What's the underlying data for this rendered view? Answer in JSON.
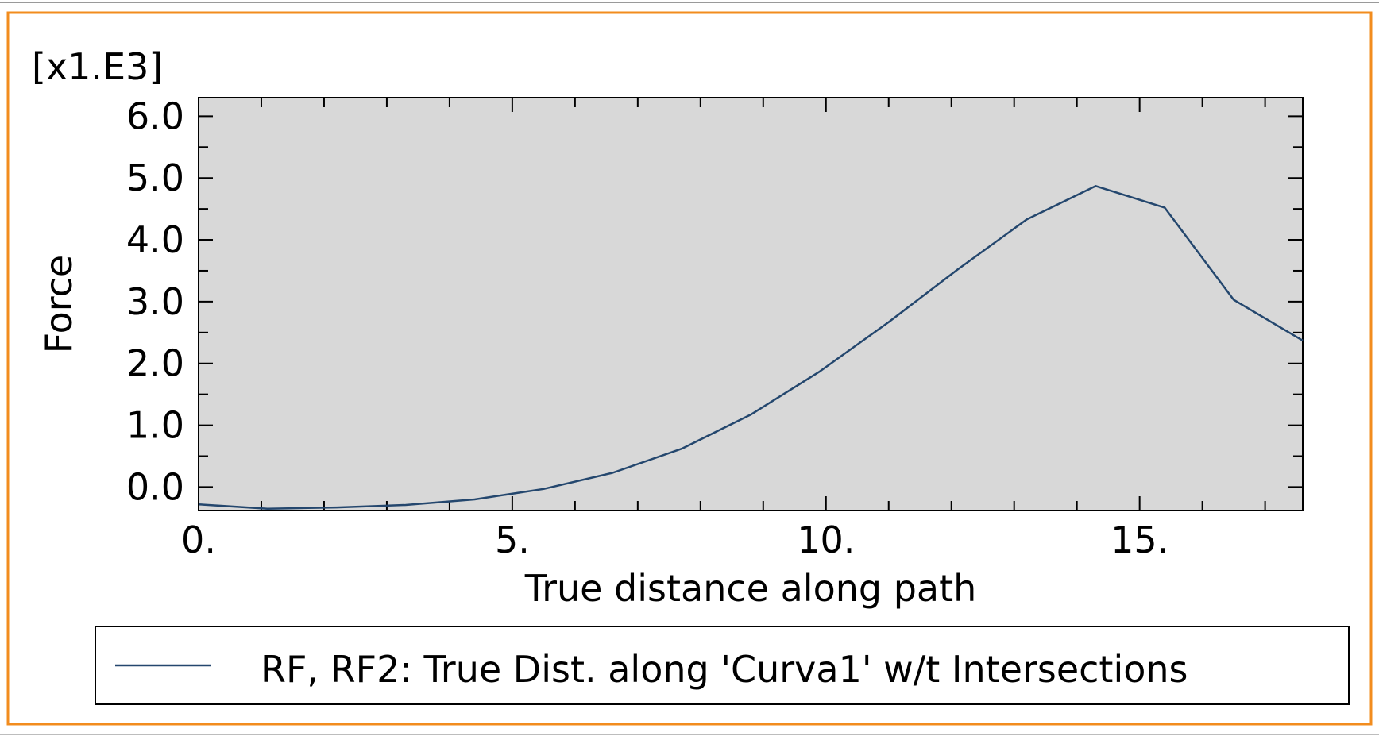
{
  "colors": {
    "frame_border": "#f28c1e",
    "plot_background": "#d8d8d8",
    "series_line": "#24476e",
    "axis": "#000000",
    "page_background": "#ffffff"
  },
  "chart_data": {
    "type": "line",
    "xlabel": "True distance along path",
    "ylabel": "Force",
    "y_multiplier_label": "[x1.E3]",
    "xlim": [
      0,
      17.6
    ],
    "ylim": [
      -0.38,
      6.3
    ],
    "x_ticks": [
      0,
      5,
      10,
      15
    ],
    "x_tick_labels": [
      "0.",
      "5.",
      "10.",
      "15."
    ],
    "y_ticks": [
      0,
      1,
      2,
      3,
      4,
      5,
      6
    ],
    "y_tick_labels": [
      "0.0",
      "1.0",
      "2.0",
      "3.0",
      "4.0",
      "5.0",
      "6.0"
    ],
    "grid": false,
    "legend_position": "bottom",
    "series": [
      {
        "name": "RF, RF2: True Dist. along 'Curva1' w/t Intersections",
        "x": [
          0,
          1.1,
          2.2,
          3.3,
          4.4,
          5.5,
          6.6,
          7.7,
          8.8,
          9.9,
          11.0,
          12.1,
          13.2,
          14.3,
          15.4,
          16.5,
          17.6
        ],
        "y": [
          -0.28,
          -0.35,
          -0.33,
          -0.29,
          -0.2,
          -0.03,
          0.23,
          0.62,
          1.17,
          1.87,
          2.67,
          3.52,
          4.33,
          4.87,
          4.52,
          3.03,
          2.37
        ]
      }
    ]
  }
}
